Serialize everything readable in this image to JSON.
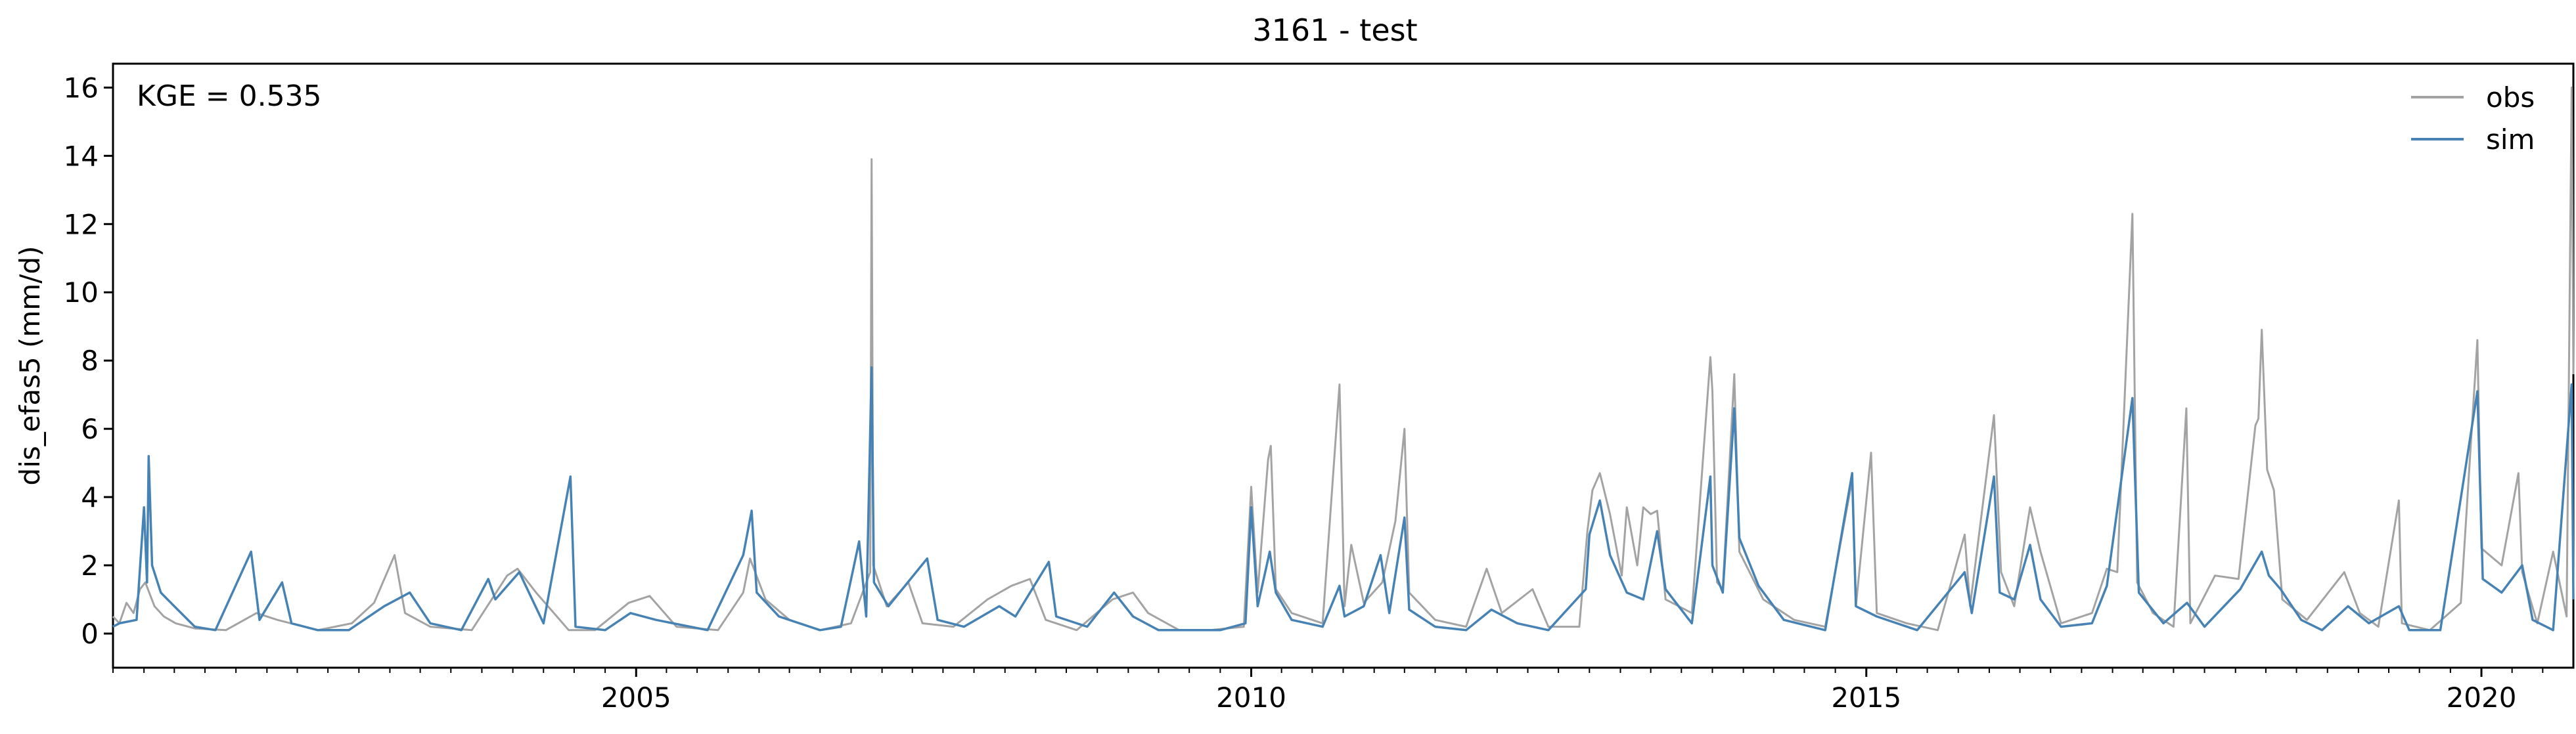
{
  "chart_data": {
    "type": "line",
    "title": "3161 - test",
    "xlabel": "",
    "ylabel": "dis_efas5 (mm/d)",
    "annotation": "KGE = 0.535",
    "xlim": [
      "2000-10-01",
      "2020-09-30"
    ],
    "ylim": [
      -1,
      16.7
    ],
    "x_ticks": [
      "2005-01-01",
      "2010-01-01",
      "2015-01-01",
      "2020-01-01"
    ],
    "x_tick_labels": [
      "2005",
      "2010",
      "2015",
      "2020"
    ],
    "y_ticks": [
      0,
      2,
      4,
      6,
      8,
      10,
      12,
      14,
      16
    ],
    "y_tick_labels": [
      "0",
      "2",
      "4",
      "6",
      "8",
      "10",
      "12",
      "14",
      "16"
    ],
    "grid": false,
    "legend_position": "top-right",
    "series": [
      {
        "name": "obs",
        "color": "#a3a3a3",
        "points": [
          [
            "2000-10-01",
            0.5
          ],
          [
            "2000-10-20",
            0.3
          ],
          [
            "2000-11-10",
            0.9
          ],
          [
            "2000-12-01",
            0.6
          ],
          [
            "2000-12-20",
            1.3
          ],
          [
            "2001-01-05",
            1.5
          ],
          [
            "2001-02-01",
            0.8
          ],
          [
            "2001-03-01",
            0.5
          ],
          [
            "2001-04-05",
            0.3
          ],
          [
            "2001-06-01",
            0.15
          ],
          [
            "2001-09-01",
            0.1
          ],
          [
            "2001-12-01",
            0.6
          ],
          [
            "2002-02-01",
            0.4
          ],
          [
            "2002-06-01",
            0.1
          ],
          [
            "2002-09-10",
            0.3
          ],
          [
            "2002-11-15",
            0.9
          ],
          [
            "2003-01-15",
            2.3
          ],
          [
            "2003-02-15",
            0.6
          ],
          [
            "2003-05-01",
            0.2
          ],
          [
            "2003-09-01",
            0.1
          ],
          [
            "2003-12-15",
            1.7
          ],
          [
            "2004-01-15",
            1.9
          ],
          [
            "2004-03-10",
            1.2
          ],
          [
            "2004-06-15",
            0.1
          ],
          [
            "2004-09-01",
            0.1
          ],
          [
            "2004-12-10",
            0.9
          ],
          [
            "2005-02-10",
            1.1
          ],
          [
            "2005-05-01",
            0.2
          ],
          [
            "2005-09-01",
            0.1
          ],
          [
            "2005-11-15",
            1.2
          ],
          [
            "2005-12-05",
            2.2
          ],
          [
            "2006-01-20",
            1.0
          ],
          [
            "2006-04-01",
            0.4
          ],
          [
            "2006-07-01",
            0.1
          ],
          [
            "2006-10-01",
            0.3
          ],
          [
            "2006-11-27",
            1.8
          ],
          [
            "2006-12-01",
            13.9
          ],
          [
            "2006-12-06",
            2.0
          ],
          [
            "2007-01-15",
            0.8
          ],
          [
            "2007-03-20",
            1.5
          ],
          [
            "2007-05-01",
            0.3
          ],
          [
            "2007-08-01",
            0.2
          ],
          [
            "2007-11-10",
            1.0
          ],
          [
            "2008-01-20",
            1.4
          ],
          [
            "2008-03-15",
            1.6
          ],
          [
            "2008-05-01",
            0.4
          ],
          [
            "2008-08-01",
            0.1
          ],
          [
            "2008-11-15",
            1.0
          ],
          [
            "2009-01-15",
            1.2
          ],
          [
            "2009-03-01",
            0.6
          ],
          [
            "2009-06-01",
            0.1
          ],
          [
            "2009-09-01",
            0.1
          ],
          [
            "2009-12-10",
            0.2
          ],
          [
            "2010-01-01",
            4.3
          ],
          [
            "2010-01-20",
            1.2
          ],
          [
            "2010-02-20",
            5.1
          ],
          [
            "2010-02-28",
            5.5
          ],
          [
            "2010-03-15",
            1.3
          ],
          [
            "2010-05-01",
            0.6
          ],
          [
            "2010-08-01",
            0.3
          ],
          [
            "2010-09-20",
            7.3
          ],
          [
            "2010-10-05",
            0.8
          ],
          [
            "2010-10-25",
            2.6
          ],
          [
            "2010-12-01",
            0.9
          ],
          [
            "2011-01-25",
            1.5
          ],
          [
            "2011-03-05",
            3.3
          ],
          [
            "2011-04-01",
            6.0
          ],
          [
            "2011-04-15",
            1.2
          ],
          [
            "2011-07-01",
            0.4
          ],
          [
            "2011-10-01",
            0.2
          ],
          [
            "2011-12-01",
            1.9
          ],
          [
            "2012-01-15",
            0.6
          ],
          [
            "2012-04-15",
            1.3
          ],
          [
            "2012-06-01",
            0.2
          ],
          [
            "2012-09-01",
            0.2
          ],
          [
            "2012-09-25",
            3.0
          ],
          [
            "2012-10-10",
            4.2
          ],
          [
            "2012-11-01",
            4.7
          ],
          [
            "2012-12-01",
            3.5
          ],
          [
            "2013-01-05",
            1.7
          ],
          [
            "2013-01-20",
            3.7
          ],
          [
            "2013-02-20",
            2.0
          ],
          [
            "2013-03-10",
            3.7
          ],
          [
            "2013-04-01",
            3.5
          ],
          [
            "2013-04-20",
            3.6
          ],
          [
            "2013-05-15",
            1.0
          ],
          [
            "2013-08-01",
            0.6
          ],
          [
            "2013-09-25",
            8.1
          ],
          [
            "2013-10-01",
            7.1
          ],
          [
            "2013-10-15",
            1.5
          ],
          [
            "2013-11-01",
            1.3
          ],
          [
            "2013-12-05",
            7.6
          ],
          [
            "2013-12-20",
            2.4
          ],
          [
            "2014-03-01",
            1.0
          ],
          [
            "2014-06-01",
            0.4
          ],
          [
            "2014-09-01",
            0.2
          ],
          [
            "2014-11-20",
            4.5
          ],
          [
            "2014-12-01",
            0.8
          ],
          [
            "2015-01-15",
            5.3
          ],
          [
            "2015-02-01",
            0.6
          ],
          [
            "2015-05-01",
            0.3
          ],
          [
            "2015-08-01",
            0.1
          ],
          [
            "2015-10-20",
            2.9
          ],
          [
            "2015-11-05",
            0.8
          ],
          [
            "2016-01-15",
            6.4
          ],
          [
            "2016-02-05",
            1.8
          ],
          [
            "2016-03-15",
            0.8
          ],
          [
            "2016-05-01",
            3.7
          ],
          [
            "2016-06-01",
            2.4
          ],
          [
            "2016-08-01",
            0.3
          ],
          [
            "2016-11-01",
            0.6
          ],
          [
            "2016-12-15",
            1.9
          ],
          [
            "2017-01-15",
            1.8
          ],
          [
            "2017-03-01",
            12.3
          ],
          [
            "2017-03-15",
            1.5
          ],
          [
            "2017-05-01",
            0.6
          ],
          [
            "2017-07-01",
            0.2
          ],
          [
            "2017-08-08",
            6.6
          ],
          [
            "2017-08-20",
            0.3
          ],
          [
            "2017-11-01",
            1.7
          ],
          [
            "2018-01-10",
            1.6
          ],
          [
            "2018-03-01",
            6.1
          ],
          [
            "2018-03-10",
            6.3
          ],
          [
            "2018-03-20",
            8.9
          ],
          [
            "2018-04-05",
            4.8
          ],
          [
            "2018-04-25",
            4.2
          ],
          [
            "2018-05-20",
            1.0
          ],
          [
            "2018-08-01",
            0.4
          ],
          [
            "2018-11-20",
            1.8
          ],
          [
            "2019-01-05",
            0.6
          ],
          [
            "2019-03-01",
            0.2
          ],
          [
            "2019-05-01",
            3.9
          ],
          [
            "2019-05-10",
            0.3
          ],
          [
            "2019-08-01",
            0.1
          ],
          [
            "2019-11-01",
            0.9
          ],
          [
            "2019-12-20",
            8.6
          ],
          [
            "2020-01-01",
            2.5
          ],
          [
            "2020-03-01",
            2.0
          ],
          [
            "2020-04-20",
            4.7
          ],
          [
            "2020-05-01",
            1.8
          ],
          [
            "2020-06-15",
            0.3
          ],
          [
            "2020-08-01",
            2.4
          ],
          [
            "2020-09-10",
            0.5
          ],
          [
            "2020-09-25",
            16.0
          ],
          [
            "2020-09-30",
            7.6
          ]
        ]
      },
      {
        "name": "sim",
        "color": "#4682b4",
        "points": [
          [
            "2000-10-01",
            0.2
          ],
          [
            "2000-10-20",
            0.3
          ],
          [
            "2000-12-10",
            0.4
          ],
          [
            "2001-01-01",
            3.7
          ],
          [
            "2001-01-10",
            1.5
          ],
          [
            "2001-01-15",
            5.2
          ],
          [
            "2001-01-25",
            2.0
          ],
          [
            "2001-02-20",
            1.2
          ],
          [
            "2001-04-01",
            0.8
          ],
          [
            "2001-06-01",
            0.2
          ],
          [
            "2001-08-01",
            0.1
          ],
          [
            "2001-11-15",
            2.4
          ],
          [
            "2001-12-10",
            0.4
          ],
          [
            "2002-02-15",
            1.5
          ],
          [
            "2002-03-15",
            0.3
          ],
          [
            "2002-06-01",
            0.1
          ],
          [
            "2002-09-01",
            0.1
          ],
          [
            "2002-12-15",
            0.8
          ],
          [
            "2003-03-01",
            1.2
          ],
          [
            "2003-05-01",
            0.3
          ],
          [
            "2003-08-01",
            0.1
          ],
          [
            "2003-10-20",
            1.6
          ],
          [
            "2003-11-10",
            1.0
          ],
          [
            "2004-01-20",
            1.8
          ],
          [
            "2004-04-01",
            0.3
          ],
          [
            "2004-06-20",
            4.6
          ],
          [
            "2004-07-05",
            0.2
          ],
          [
            "2004-10-01",
            0.1
          ],
          [
            "2004-12-15",
            0.6
          ],
          [
            "2005-03-01",
            0.4
          ],
          [
            "2005-08-01",
            0.1
          ],
          [
            "2005-11-15",
            2.3
          ],
          [
            "2005-12-10",
            3.6
          ],
          [
            "2005-12-25",
            1.2
          ],
          [
            "2006-03-01",
            0.5
          ],
          [
            "2006-07-01",
            0.1
          ],
          [
            "2006-09-01",
            0.2
          ],
          [
            "2006-10-25",
            2.7
          ],
          [
            "2006-11-15",
            0.5
          ],
          [
            "2006-12-01",
            7.8
          ],
          [
            "2006-12-08",
            1.5
          ],
          [
            "2007-01-20",
            0.8
          ],
          [
            "2007-05-15",
            2.2
          ],
          [
            "2007-06-15",
            0.4
          ],
          [
            "2007-09-01",
            0.2
          ],
          [
            "2007-12-15",
            0.8
          ],
          [
            "2008-02-01",
            0.5
          ],
          [
            "2008-05-10",
            2.1
          ],
          [
            "2008-06-01",
            0.5
          ],
          [
            "2008-09-01",
            0.2
          ],
          [
            "2008-11-20",
            1.2
          ],
          [
            "2009-01-15",
            0.5
          ],
          [
            "2009-04-01",
            0.1
          ],
          [
            "2009-10-01",
            0.1
          ],
          [
            "2009-12-15",
            0.3
          ],
          [
            "2010-01-01",
            3.7
          ],
          [
            "2010-01-20",
            0.8
          ],
          [
            "2010-02-25",
            2.4
          ],
          [
            "2010-03-15",
            1.2
          ],
          [
            "2010-05-01",
            0.4
          ],
          [
            "2010-08-01",
            0.2
          ],
          [
            "2010-09-20",
            1.4
          ],
          [
            "2010-10-05",
            0.5
          ],
          [
            "2010-12-01",
            0.8
          ],
          [
            "2011-01-20",
            2.3
          ],
          [
            "2011-02-15",
            0.6
          ],
          [
            "2011-04-01",
            3.4
          ],
          [
            "2011-04-15",
            0.7
          ],
          [
            "2011-07-01",
            0.2
          ],
          [
            "2011-10-01",
            0.1
          ],
          [
            "2011-12-15",
            0.7
          ],
          [
            "2012-03-01",
            0.3
          ],
          [
            "2012-06-01",
            0.1
          ],
          [
            "2012-09-20",
            1.3
          ],
          [
            "2012-10-01",
            2.9
          ],
          [
            "2012-11-01",
            3.9
          ],
          [
            "2012-12-01",
            2.3
          ],
          [
            "2013-01-20",
            1.2
          ],
          [
            "2013-03-10",
            1.0
          ],
          [
            "2013-04-20",
            3.0
          ],
          [
            "2013-05-15",
            1.3
          ],
          [
            "2013-08-01",
            0.3
          ],
          [
            "2013-09-25",
            4.6
          ],
          [
            "2013-10-01",
            2.0
          ],
          [
            "2013-11-01",
            1.2
          ],
          [
            "2013-12-05",
            6.6
          ],
          [
            "2013-12-20",
            2.8
          ],
          [
            "2014-02-15",
            1.4
          ],
          [
            "2014-05-01",
            0.4
          ],
          [
            "2014-09-01",
            0.1
          ],
          [
            "2014-11-20",
            4.7
          ],
          [
            "2014-12-01",
            0.8
          ],
          [
            "2015-02-01",
            0.5
          ],
          [
            "2015-06-01",
            0.1
          ],
          [
            "2015-10-20",
            1.8
          ],
          [
            "2015-11-10",
            0.6
          ],
          [
            "2016-01-15",
            4.6
          ],
          [
            "2016-02-01",
            1.2
          ],
          [
            "2016-03-15",
            1.0
          ],
          [
            "2016-05-01",
            2.6
          ],
          [
            "2016-06-01",
            1.0
          ],
          [
            "2016-08-01",
            0.2
          ],
          [
            "2016-11-01",
            0.3
          ],
          [
            "2016-12-15",
            1.4
          ],
          [
            "2017-03-01",
            6.9
          ],
          [
            "2017-03-20",
            1.2
          ],
          [
            "2017-06-01",
            0.3
          ],
          [
            "2017-08-10",
            0.9
          ],
          [
            "2017-10-01",
            0.2
          ],
          [
            "2018-01-15",
            1.3
          ],
          [
            "2018-03-20",
            2.4
          ],
          [
            "2018-04-10",
            1.7
          ],
          [
            "2018-05-15",
            1.3
          ],
          [
            "2018-07-15",
            0.4
          ],
          [
            "2018-09-15",
            0.1
          ],
          [
            "2018-12-01",
            0.8
          ],
          [
            "2019-02-01",
            0.3
          ],
          [
            "2019-05-01",
            0.8
          ],
          [
            "2019-06-01",
            0.1
          ],
          [
            "2019-09-01",
            0.1
          ],
          [
            "2019-12-20",
            7.1
          ],
          [
            "2020-01-05",
            1.6
          ],
          [
            "2020-03-01",
            1.2
          ],
          [
            "2020-05-01",
            2.0
          ],
          [
            "2020-06-01",
            0.4
          ],
          [
            "2020-08-01",
            0.1
          ],
          [
            "2020-09-25",
            7.3
          ],
          [
            "2020-09-30",
            1.0
          ]
        ]
      }
    ]
  }
}
